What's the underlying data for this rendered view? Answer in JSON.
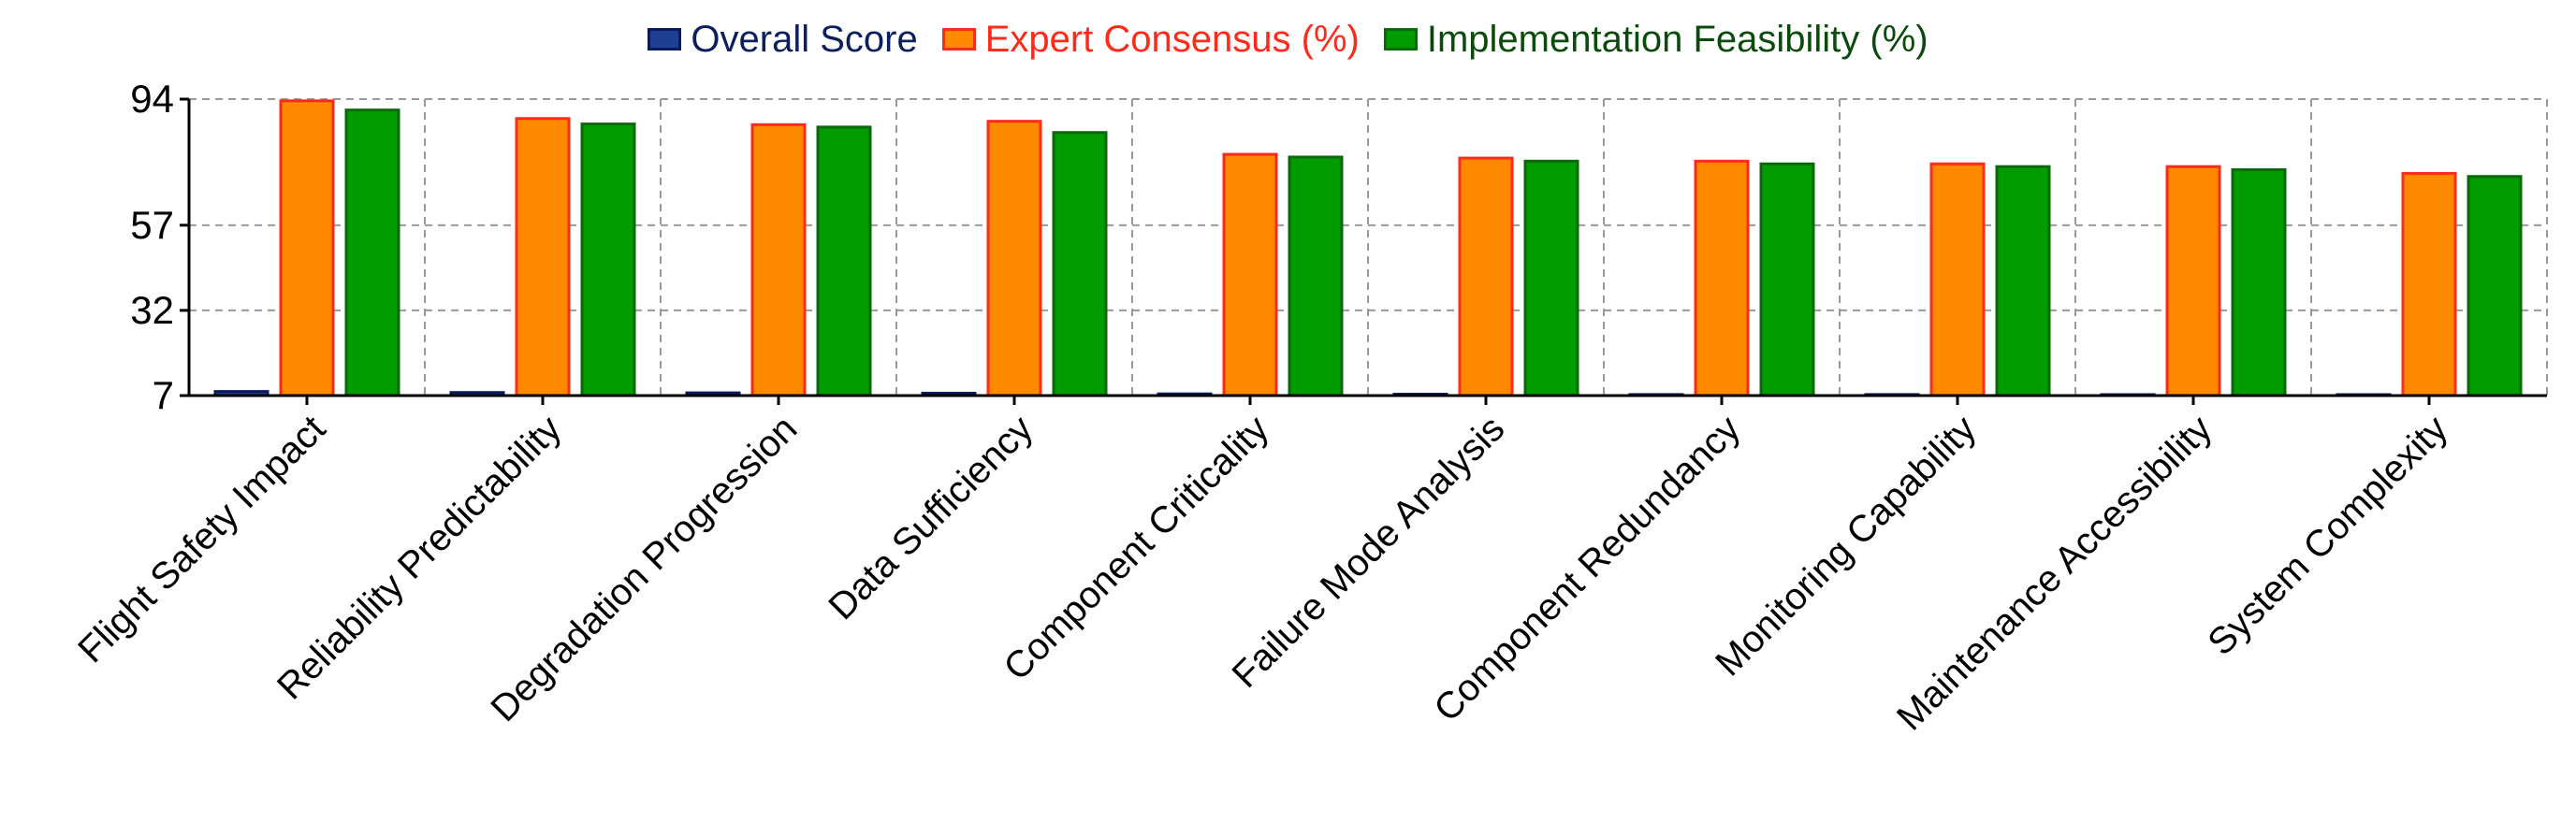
{
  "chart_data": {
    "type": "bar",
    "title": "",
    "xlabel": "",
    "ylabel": "",
    "categories": [
      "Flight Safety Impact",
      "Reliability Predictability",
      "Degradation Progression",
      "Data Sufficiency",
      "Component Criticality",
      "Failure Mode Analysis",
      "Component Redundancy",
      "Monitoring Capability",
      "Maintenance Accessibility",
      "System Complexity"
    ],
    "series": [
      {
        "name": "Overall Score",
        "color": "#1f3f94",
        "stroke": "#0a1a5c",
        "label_color": "#0b1f5e",
        "values": [
          8.2,
          7.9,
          7.8,
          7.7,
          7.5,
          7.4,
          7.3,
          7.3,
          7.2,
          7.0
        ]
      },
      {
        "name": "Expert Consensus (%)",
        "color": "#ff8a00",
        "stroke": "#ff2a1a",
        "label_color": "#ff2a1a",
        "values": [
          93.5,
          88.3,
          86.5,
          87.5,
          77.8,
          76.7,
          75.8,
          75.0,
          74.2,
          72.2
        ]
      },
      {
        "name": "Implementation Feasibility (%)",
        "color": "#009b00",
        "stroke": "#0a6a0a",
        "label_color": "#0a4a0a",
        "values": [
          90.8,
          86.7,
          85.8,
          84.2,
          77.0,
          75.8,
          75.0,
          74.2,
          73.3,
          71.3
        ]
      }
    ],
    "yticks": [
      7,
      32,
      57,
      94
    ],
    "ylim": [
      7,
      94
    ],
    "grid": true,
    "legend_position": "top"
  }
}
